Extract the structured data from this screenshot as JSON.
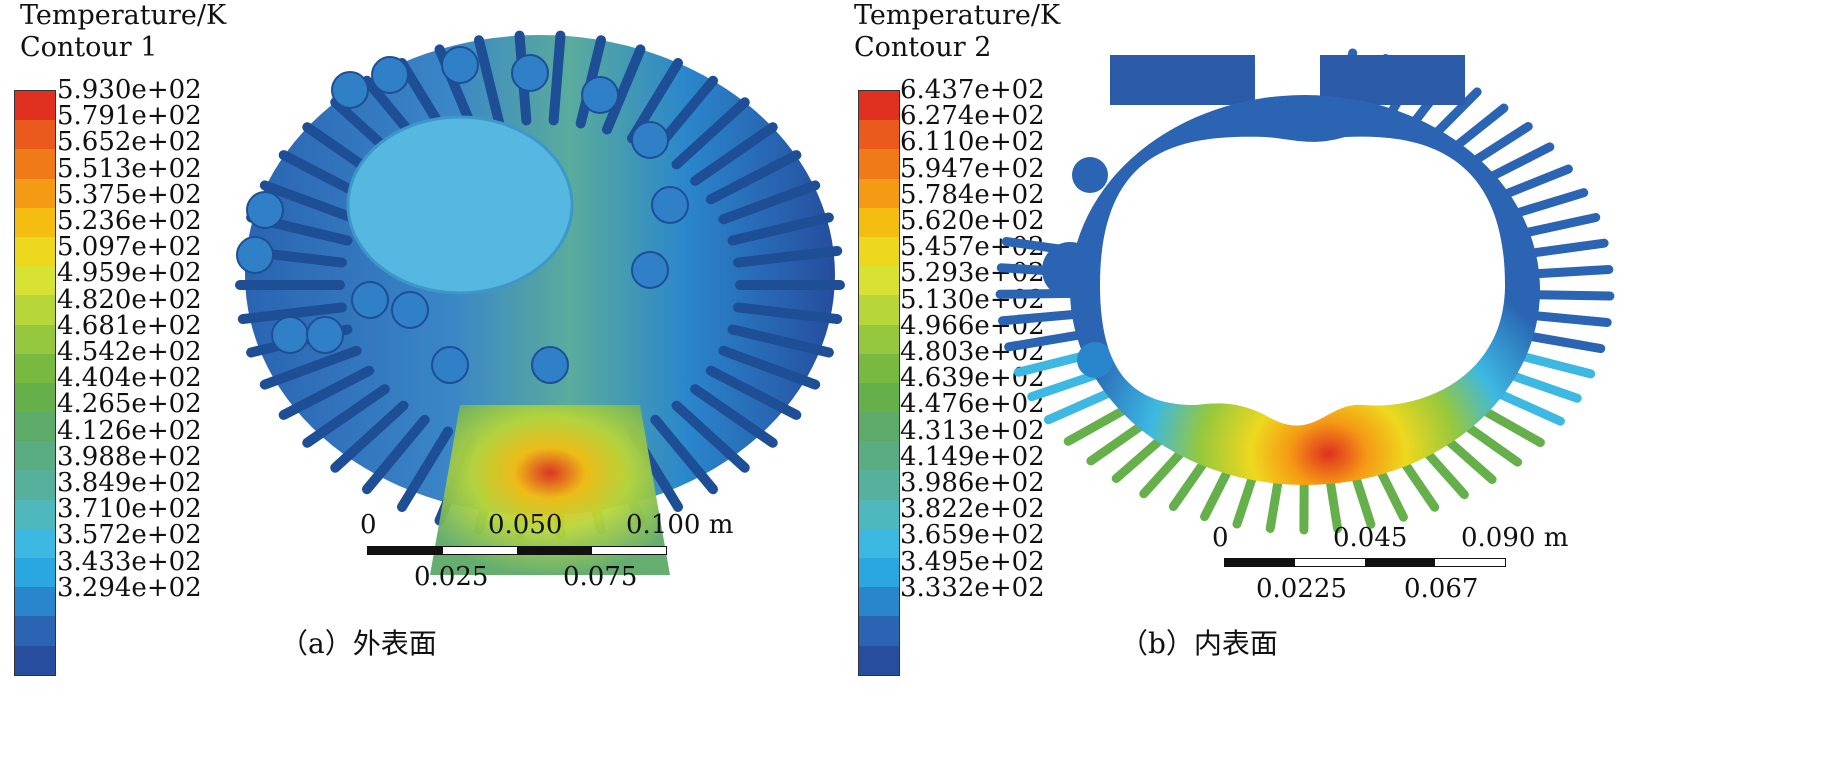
{
  "left": {
    "title_line1": "Temperature/K",
    "title_line2": "Contour 1",
    "legend_values": [
      "5.930e+02",
      "5.791e+02",
      "5.652e+02",
      "5.513e+02",
      "5.375e+02",
      "5.236e+02",
      "5.097e+02",
      "4.959e+02",
      "4.820e+02",
      "4.681e+02",
      "4.542e+02",
      "4.404e+02",
      "4.265e+02",
      "4.126e+02",
      "3.988e+02",
      "3.849e+02",
      "3.710e+02",
      "3.572e+02",
      "3.433e+02",
      "3.294e+02"
    ],
    "scale_top": [
      "0",
      "0.050",
      "0.100 m"
    ],
    "scale_bottom": [
      "0.025",
      "0.075"
    ],
    "caption": "（a）外表面"
  },
  "right": {
    "title_line1": "Temperature/K",
    "title_line2": "Contour 2",
    "legend_values": [
      "6.437e+02",
      "6.274e+02",
      "6.110e+02",
      "5.947e+02",
      "5.784e+02",
      "5.620e+02",
      "5.457e+02",
      "5.293e+02",
      "5.130e+02",
      "4.966e+02",
      "4.803e+02",
      "4.639e+02",
      "4.476e+02",
      "4.313e+02",
      "4.149e+02",
      "3.986e+02",
      "3.822e+02",
      "3.659e+02",
      "3.495e+02",
      "3.332e+02"
    ],
    "scale_top": [
      "0",
      "0.045",
      "0.090 m"
    ],
    "scale_bottom": [
      "0.0225",
      "0.067"
    ],
    "caption": "（b）内表面"
  },
  "colormap": [
    "#e03020",
    "#ea5a1c",
    "#f07a18",
    "#f59a14",
    "#f5bd12",
    "#eed81e",
    "#d8e232",
    "#b7d63a",
    "#95c83e",
    "#78ba40",
    "#66b04c",
    "#5eaa68",
    "#5aac82",
    "#56b09c",
    "#4eb8bc",
    "#3cb8e2",
    "#2aa6e0",
    "#2a86cc",
    "#2a64b2",
    "#264d9e"
  ]
}
